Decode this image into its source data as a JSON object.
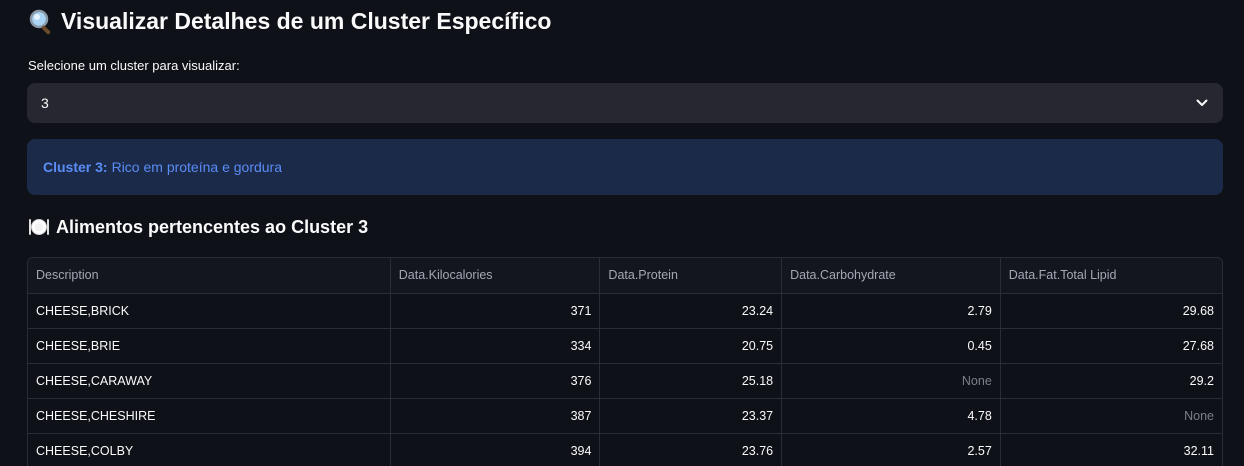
{
  "header": {
    "icon": "magnifier-icon",
    "title": "Visualizar Detalhes de um Cluster Específico"
  },
  "selector": {
    "label": "Selecione um cluster para visualizar:",
    "value": "3"
  },
  "info": {
    "strong": "Cluster 3:",
    "text": "Rico em proteína e gordura"
  },
  "section": {
    "icon": "plate-cutlery-icon",
    "title": "Alimentos pertencentes ao Cluster 3"
  },
  "table": {
    "columns": [
      "Description",
      "Data.Kilocalories",
      "Data.Protein",
      "Data.Carbohydrate",
      "Data.Fat.Total Lipid"
    ],
    "rows": [
      [
        "CHEESE,BRICK",
        "371",
        "23.24",
        "2.79",
        "29.68"
      ],
      [
        "CHEESE,BRIE",
        "334",
        "20.75",
        "0.45",
        "27.68"
      ],
      [
        "CHEESE,CARAWAY",
        "376",
        "25.18",
        "None",
        "29.2"
      ],
      [
        "CHEESE,CHESHIRE",
        "387",
        "23.37",
        "4.78",
        "None"
      ],
      [
        "CHEESE,COLBY",
        "394",
        "23.76",
        "2.57",
        "32.11"
      ]
    ]
  },
  "colors": {
    "background": "#0e1117",
    "select_bg": "#262730",
    "info_bg": "#1c2a4a",
    "info_text": "#5a8cf5"
  }
}
